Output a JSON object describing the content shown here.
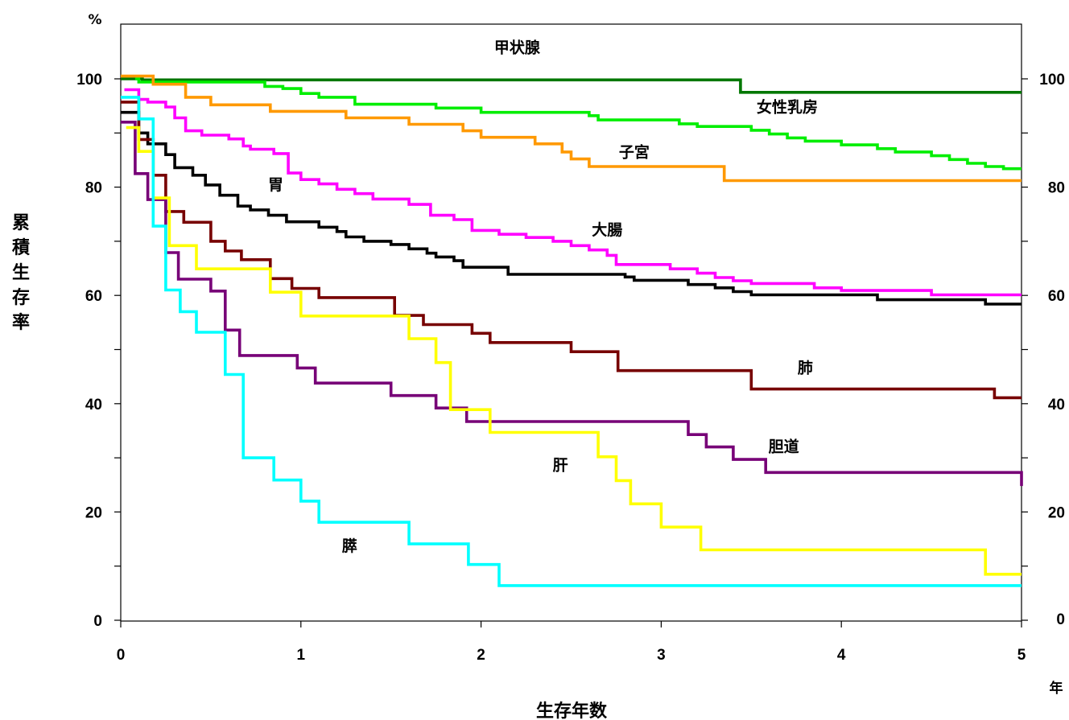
{
  "chart_data": {
    "type": "line",
    "step": true,
    "xlabel": "生存年数",
    "ylabel": "累積生存率",
    "y_unit": "%",
    "x_unit": "年",
    "xlim": [
      0,
      5
    ],
    "ylim": [
      0,
      100
    ],
    "x_ticks": [
      "0",
      "1",
      "2",
      "3",
      "4",
      "5"
    ],
    "y_ticks_left": [
      "0",
      "20",
      "40",
      "60",
      "80",
      "100"
    ],
    "y_ticks_right": [
      "0",
      "20",
      "40",
      "60",
      "80",
      "100"
    ],
    "grid": false,
    "series": [
      {
        "name": "甲状腺",
        "color": "#007700",
        "label_at": [
          2.2,
          104.8
        ],
        "points": [
          [
            0,
            100
          ],
          [
            0.12,
            99.8
          ],
          [
            3.44,
            99.8
          ],
          [
            3.44,
            97.5
          ],
          [
            5.0,
            97.5
          ]
        ]
      },
      {
        "name": "女性乳房",
        "color": "#00ee00",
        "label_at": [
          3.7,
          93.8
        ],
        "points": [
          [
            0.08,
            100
          ],
          [
            0.1,
            99.4
          ],
          [
            0.75,
            99.4
          ],
          [
            0.8,
            98.6
          ],
          [
            0.9,
            98.2
          ],
          [
            1.0,
            97.3
          ],
          [
            1.1,
            96.6
          ],
          [
            1.3,
            95.3
          ],
          [
            1.75,
            94.6
          ],
          [
            2.0,
            93.8
          ],
          [
            2.6,
            93.2
          ],
          [
            2.65,
            92.4
          ],
          [
            3.1,
            91.7
          ],
          [
            3.2,
            91.2
          ],
          [
            3.5,
            90.5
          ],
          [
            3.6,
            89.8
          ],
          [
            3.7,
            89.1
          ],
          [
            3.8,
            88.5
          ],
          [
            4.0,
            87.8
          ],
          [
            4.2,
            87.1
          ],
          [
            4.3,
            86.5
          ],
          [
            4.5,
            85.8
          ],
          [
            4.6,
            85.1
          ],
          [
            4.7,
            84.4
          ],
          [
            4.8,
            83.8
          ],
          [
            4.9,
            83.4
          ],
          [
            5.0,
            83.4
          ]
        ]
      },
      {
        "name": "子宮",
        "color": "#ff9900",
        "label_at": [
          2.85,
          85.5
        ],
        "points": [
          [
            0,
            100.5
          ],
          [
            0.18,
            99.0
          ],
          [
            0.36,
            96.6
          ],
          [
            0.5,
            95.2
          ],
          [
            0.83,
            94.0
          ],
          [
            1.25,
            92.8
          ],
          [
            1.6,
            91.6
          ],
          [
            1.9,
            90.4
          ],
          [
            2.0,
            89.2
          ],
          [
            2.3,
            88.0
          ],
          [
            2.45,
            86.5
          ],
          [
            2.5,
            85.2
          ],
          [
            2.6,
            83.8
          ],
          [
            3.35,
            83.8
          ],
          [
            3.35,
            81.2
          ],
          [
            5.0,
            81.2
          ]
        ]
      },
      {
        "name": "胃",
        "color": "#000000",
        "label_at": [
          0.86,
          79.5
        ],
        "points": [
          [
            0,
            93.8
          ],
          [
            0.1,
            90.0
          ],
          [
            0.15,
            88.0
          ],
          [
            0.25,
            86.0
          ],
          [
            0.3,
            83.6
          ],
          [
            0.4,
            82.2
          ],
          [
            0.47,
            80.4
          ],
          [
            0.5,
            80.4
          ],
          [
            0.55,
            78.5
          ],
          [
            0.6,
            78.5
          ],
          [
            0.65,
            76.5
          ],
          [
            0.72,
            75.8
          ],
          [
            0.82,
            74.8
          ],
          [
            0.88,
            74.8
          ],
          [
            0.92,
            73.6
          ],
          [
            1.1,
            72.6
          ],
          [
            1.2,
            71.8
          ],
          [
            1.25,
            70.8
          ],
          [
            1.35,
            70.0
          ],
          [
            1.5,
            69.4
          ],
          [
            1.6,
            68.6
          ],
          [
            1.7,
            67.8
          ],
          [
            1.75,
            67.1
          ],
          [
            1.85,
            66.4
          ],
          [
            1.9,
            65.2
          ],
          [
            2.15,
            63.9
          ],
          [
            2.8,
            63.4
          ],
          [
            2.85,
            62.8
          ],
          [
            3.15,
            62.0
          ],
          [
            3.3,
            61.4
          ],
          [
            3.4,
            60.7
          ],
          [
            3.5,
            60.1
          ],
          [
            4.2,
            59.2
          ],
          [
            4.8,
            58.4
          ],
          [
            5.0,
            58.4
          ]
        ]
      },
      {
        "name": "大腸",
        "color": "#ff00ff",
        "label_at": [
          2.7,
          71.2
        ],
        "points": [
          [
            0.02,
            98.0
          ],
          [
            0.1,
            96.2
          ],
          [
            0.15,
            95.7
          ],
          [
            0.25,
            94.8
          ],
          [
            0.3,
            92.8
          ],
          [
            0.36,
            90.4
          ],
          [
            0.45,
            89.6
          ],
          [
            0.6,
            88.9
          ],
          [
            0.68,
            87.6
          ],
          [
            0.72,
            87.0
          ],
          [
            0.85,
            86.2
          ],
          [
            0.93,
            82.6
          ],
          [
            1.0,
            81.4
          ],
          [
            1.1,
            80.6
          ],
          [
            1.2,
            79.6
          ],
          [
            1.3,
            78.8
          ],
          [
            1.4,
            77.8
          ],
          [
            1.6,
            76.8
          ],
          [
            1.72,
            74.8
          ],
          [
            1.85,
            74.0
          ],
          [
            1.95,
            72.0
          ],
          [
            2.1,
            71.3
          ],
          [
            2.25,
            70.7
          ],
          [
            2.4,
            70.0
          ],
          [
            2.5,
            69.2
          ],
          [
            2.6,
            68.4
          ],
          [
            2.7,
            67.4
          ],
          [
            2.75,
            65.7
          ],
          [
            3.05,
            64.9
          ],
          [
            3.2,
            64.1
          ],
          [
            3.3,
            63.3
          ],
          [
            3.4,
            62.7
          ],
          [
            3.5,
            62.2
          ],
          [
            3.85,
            61.4
          ],
          [
            4.0,
            60.9
          ],
          [
            4.5,
            60.1
          ],
          [
            5.0,
            60.1
          ]
        ]
      },
      {
        "name": "肺",
        "color": "#770000",
        "label_at": [
          3.8,
          45.7
        ],
        "points": [
          [
            0,
            95.7
          ],
          [
            0.1,
            88.8
          ],
          [
            0.18,
            82.2
          ],
          [
            0.25,
            75.5
          ],
          [
            0.35,
            73.5
          ],
          [
            0.5,
            70.0
          ],
          [
            0.58,
            68.2
          ],
          [
            0.67,
            66.6
          ],
          [
            0.83,
            63.1
          ],
          [
            0.95,
            61.3
          ],
          [
            1.1,
            59.6
          ],
          [
            1.52,
            56.3
          ],
          [
            1.68,
            54.6
          ],
          [
            1.95,
            53.0
          ],
          [
            2.05,
            51.3
          ],
          [
            2.5,
            49.6
          ],
          [
            2.76,
            46.1
          ],
          [
            3.5,
            42.7
          ],
          [
            4.85,
            41.1
          ],
          [
            5.0,
            41.1
          ]
        ]
      },
      {
        "name": "胆道",
        "color": "#770077",
        "label_at": [
          3.68,
          31.1
        ],
        "points": [
          [
            0,
            92.0
          ],
          [
            0.08,
            82.5
          ],
          [
            0.15,
            77.7
          ],
          [
            0.25,
            67.9
          ],
          [
            0.32,
            63.0
          ],
          [
            0.5,
            60.8
          ],
          [
            0.58,
            53.6
          ],
          [
            0.66,
            48.9
          ],
          [
            0.98,
            46.6
          ],
          [
            1.08,
            43.8
          ],
          [
            1.5,
            41.5
          ],
          [
            1.75,
            39.2
          ],
          [
            1.92,
            36.7
          ],
          [
            3.15,
            34.3
          ],
          [
            3.25,
            32.0
          ],
          [
            3.4,
            29.7
          ],
          [
            3.58,
            27.3
          ],
          [
            5.0,
            27.3
          ],
          [
            5.0,
            24.8
          ]
        ]
      },
      {
        "name": "肝",
        "color": "#ffff00",
        "label_at": [
          2.44,
          27.7
        ],
        "points": [
          [
            0.03,
            91.0
          ],
          [
            0.1,
            86.6
          ],
          [
            0.18,
            78.0
          ],
          [
            0.27,
            69.2
          ],
          [
            0.42,
            64.9
          ],
          [
            0.83,
            60.6
          ],
          [
            1.0,
            56.2
          ],
          [
            1.6,
            52.0
          ],
          [
            1.75,
            47.6
          ],
          [
            1.83,
            38.9
          ],
          [
            2.05,
            34.7
          ],
          [
            2.65,
            30.2
          ],
          [
            2.75,
            25.8
          ],
          [
            2.83,
            21.5
          ],
          [
            3.0,
            17.2
          ],
          [
            3.22,
            13.0
          ],
          [
            4.8,
            8.5
          ],
          [
            5.0,
            8.5
          ]
        ]
      },
      {
        "name": "膵",
        "color": "#00ffff",
        "label_at": [
          1.27,
          12.8
        ],
        "points": [
          [
            0,
            96.6
          ],
          [
            0.1,
            92.6
          ],
          [
            0.18,
            72.8
          ],
          [
            0.25,
            61.0
          ],
          [
            0.33,
            57.0
          ],
          [
            0.42,
            53.2
          ],
          [
            0.58,
            45.4
          ],
          [
            0.68,
            30.0
          ],
          [
            0.85,
            25.9
          ],
          [
            1.0,
            22.0
          ],
          [
            1.1,
            18.1
          ],
          [
            1.6,
            14.1
          ],
          [
            1.93,
            10.3
          ],
          [
            2.1,
            6.4
          ],
          [
            5.0,
            6.4
          ]
        ]
      }
    ]
  }
}
